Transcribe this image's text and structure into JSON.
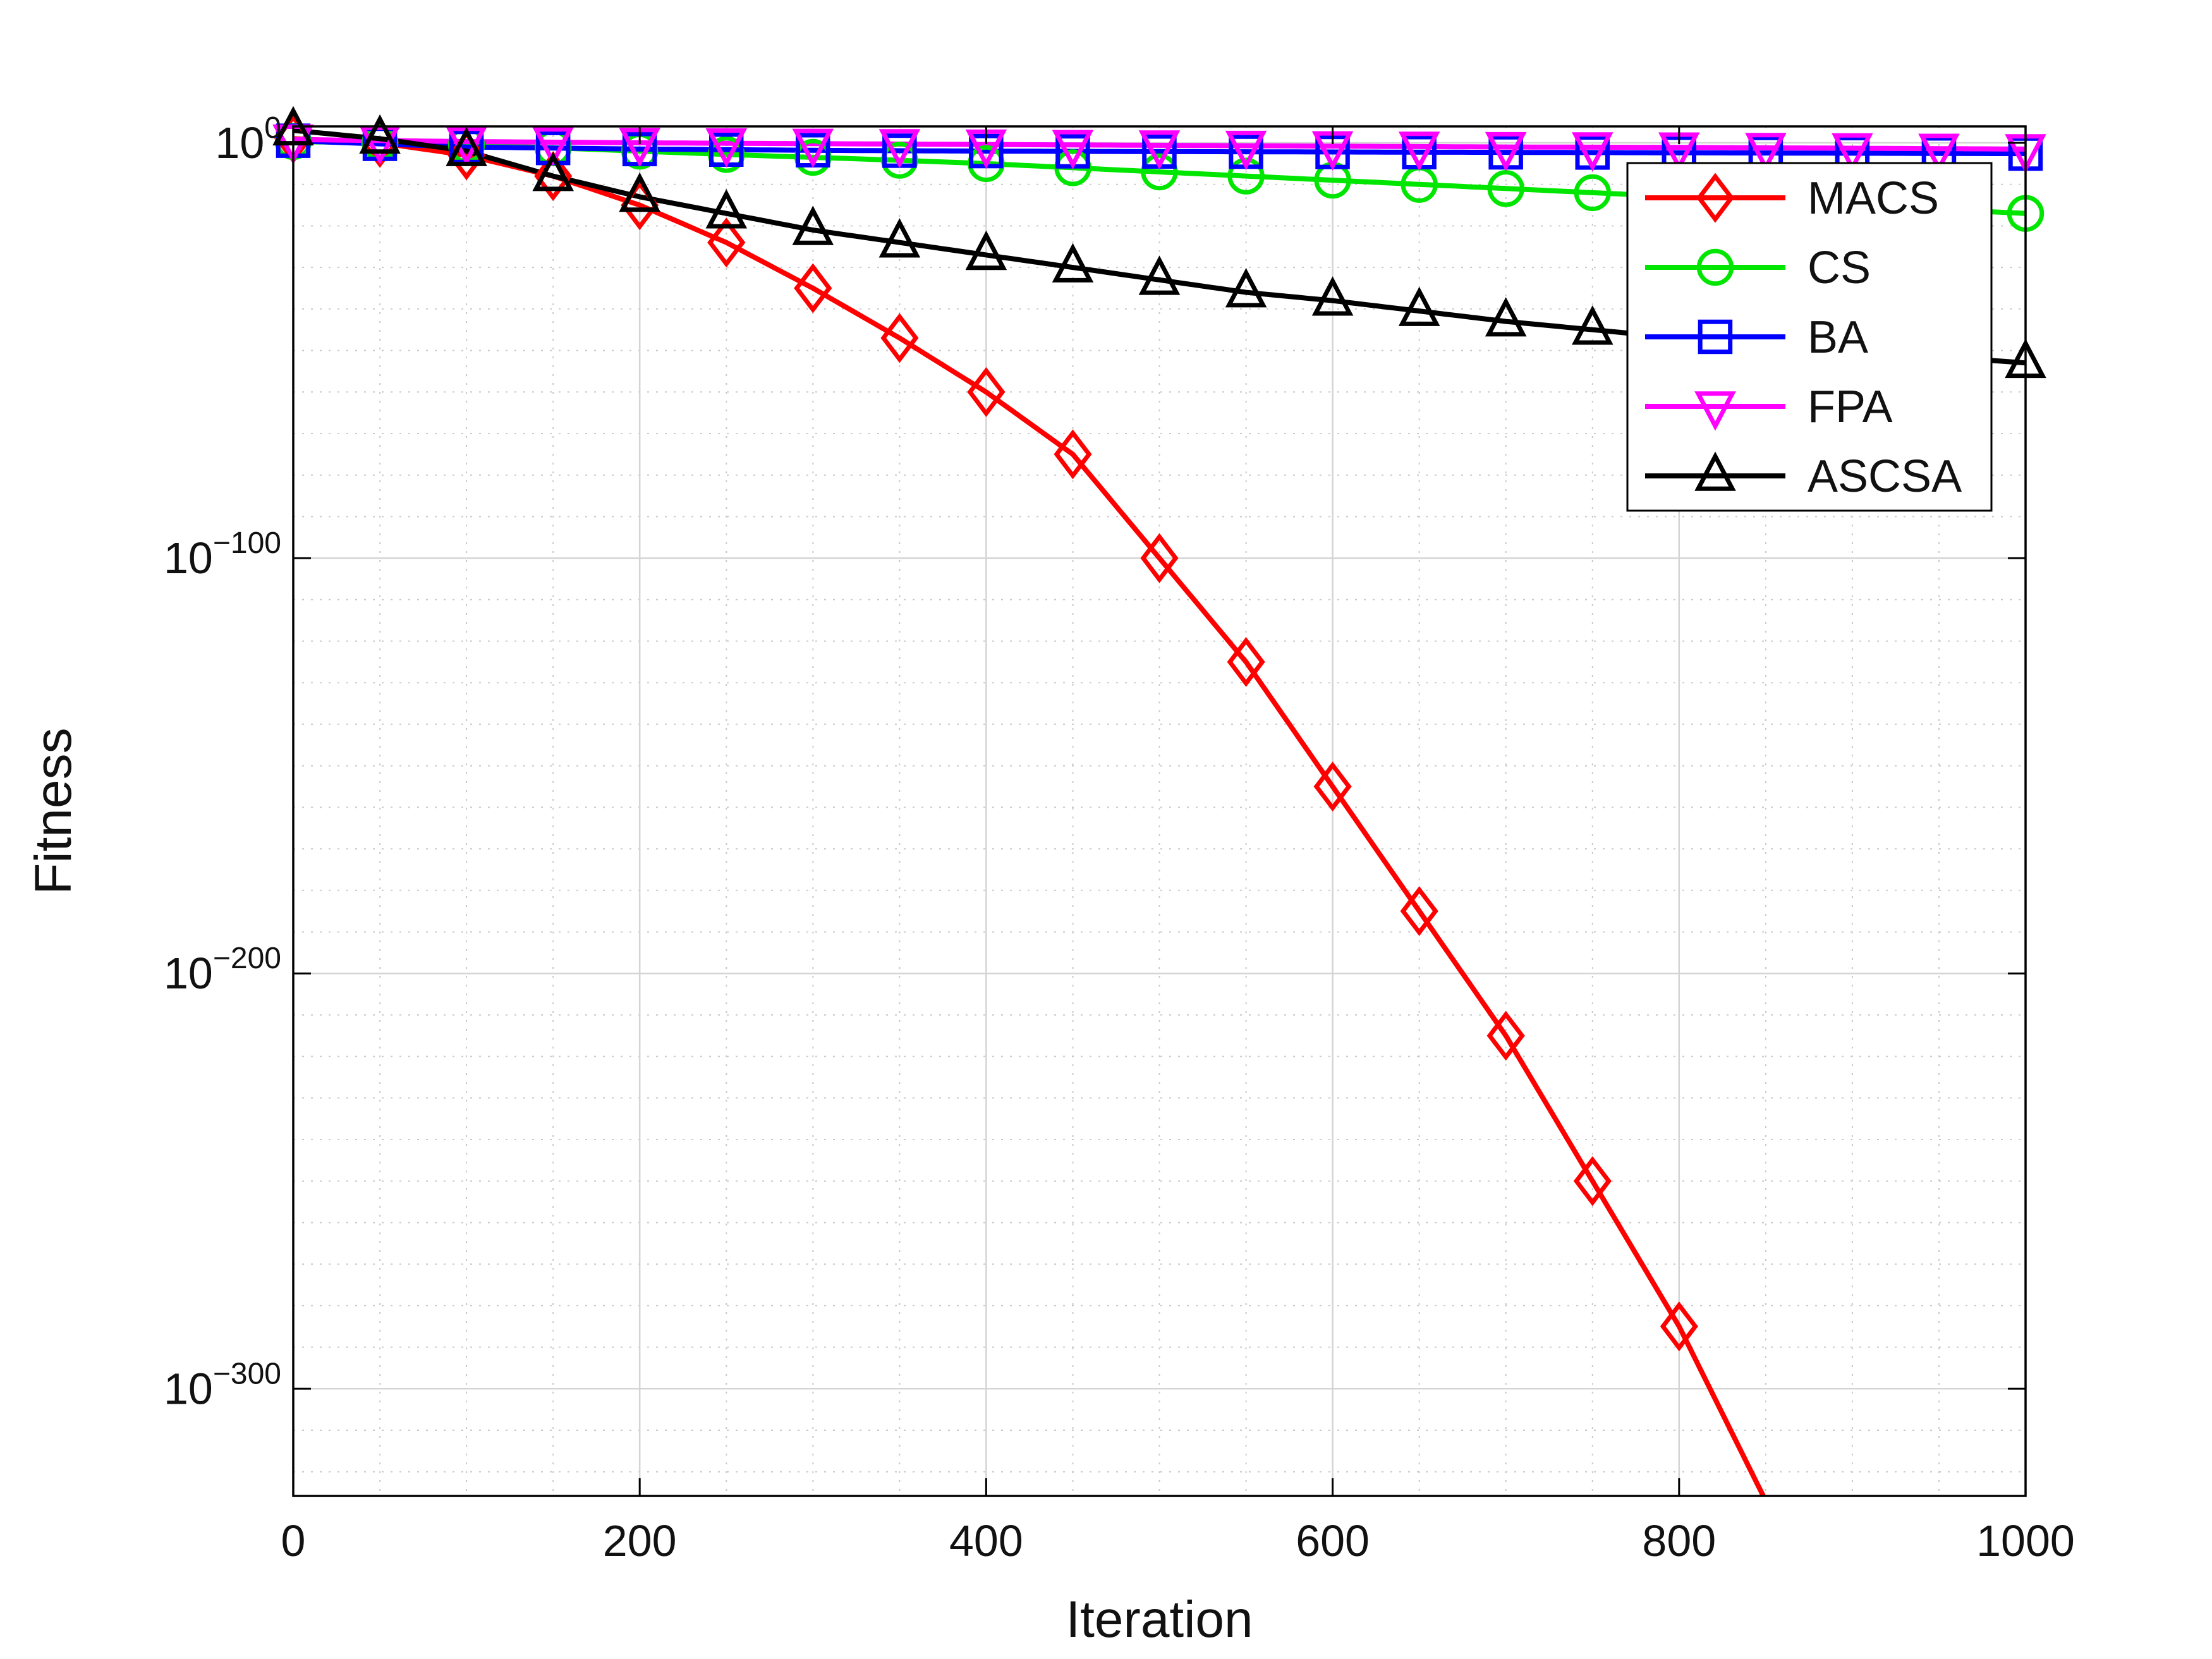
{
  "chart_data": {
    "type": "line",
    "title": "",
    "xlabel": "Iteration",
    "ylabel": "Fitness",
    "x_range": [
      0,
      1000
    ],
    "x_ticks": [
      0,
      200,
      400,
      600,
      800,
      1000
    ],
    "x_minor_step": 50,
    "y_scale": "log10",
    "y_tick_exponents": [
      0,
      -100,
      -200,
      -300
    ],
    "y_tick_labels": [
      "0",
      "−100",
      "−200",
      "−300"
    ],
    "y_exponent_top": 4,
    "y_exponent_bottom": -326,
    "y_minor_step_decades": 10,
    "grid": {
      "major": true,
      "minor": true
    },
    "marker_interval": 50,
    "legend": {
      "position": "northeast",
      "entries": [
        "MACS",
        "CS",
        "BA",
        "FPA",
        "ASCSA"
      ]
    },
    "series": [
      {
        "name": "MACS",
        "color": "#ff0000",
        "marker": "diamond",
        "points": [
          [
            0,
            1
          ],
          [
            50,
            0
          ],
          [
            100,
            -3
          ],
          [
            150,
            -8
          ],
          [
            200,
            -15
          ],
          [
            250,
            -24
          ],
          [
            300,
            -35
          ],
          [
            350,
            -47
          ],
          [
            400,
            -60
          ],
          [
            450,
            -75
          ],
          [
            500,
            -100
          ],
          [
            550,
            -125
          ],
          [
            600,
            -155
          ],
          [
            650,
            -185
          ],
          [
            700,
            -215
          ],
          [
            750,
            -250
          ],
          [
            800,
            -285
          ],
          [
            850,
            -327
          ]
        ]
      },
      {
        "name": "CS",
        "color": "#00e600",
        "marker": "circle",
        "points": [
          [
            0,
            0.3
          ],
          [
            50,
            0
          ],
          [
            100,
            -0.5
          ],
          [
            150,
            -1.2
          ],
          [
            200,
            -2
          ],
          [
            250,
            -2.8
          ],
          [
            300,
            -3.5
          ],
          [
            350,
            -4.2
          ],
          [
            400,
            -5
          ],
          [
            450,
            -6
          ],
          [
            500,
            -7
          ],
          [
            550,
            -8
          ],
          [
            600,
            -9
          ],
          [
            650,
            -10
          ],
          [
            700,
            -11
          ],
          [
            750,
            -12
          ],
          [
            800,
            -13
          ],
          [
            850,
            -14
          ],
          [
            900,
            -15
          ],
          [
            950,
            -16
          ],
          [
            1000,
            -17
          ]
        ]
      },
      {
        "name": "BA",
        "color": "#0000ff",
        "marker": "square",
        "points": [
          [
            0,
            0.5
          ],
          [
            100,
            -1
          ],
          [
            200,
            -1.5
          ],
          [
            300,
            -1.8
          ],
          [
            400,
            -2
          ],
          [
            500,
            -2.1
          ],
          [
            600,
            -2.2
          ],
          [
            700,
            -2.3
          ],
          [
            800,
            -2.4
          ],
          [
            900,
            -2.5
          ],
          [
            1000,
            -2.6
          ]
        ]
      },
      {
        "name": "FPA",
        "color": "#ff00ff",
        "marker": "triangle-down",
        "points": [
          [
            0,
            0.8
          ],
          [
            100,
            0.3
          ],
          [
            200,
            0
          ],
          [
            300,
            -0.2
          ],
          [
            400,
            -0.4
          ],
          [
            500,
            -0.6
          ],
          [
            600,
            -0.8
          ],
          [
            700,
            -1
          ],
          [
            800,
            -1.1
          ],
          [
            900,
            -1.3
          ],
          [
            1000,
            -1.5
          ]
        ]
      },
      {
        "name": "ASCSA",
        "color": "#000000",
        "marker": "triangle-up",
        "points": [
          [
            0,
            3
          ],
          [
            50,
            1
          ],
          [
            100,
            -2
          ],
          [
            150,
            -8
          ],
          [
            200,
            -13
          ],
          [
            250,
            -17
          ],
          [
            300,
            -21
          ],
          [
            350,
            -24
          ],
          [
            400,
            -27
          ],
          [
            450,
            -30
          ],
          [
            500,
            -33
          ],
          [
            550,
            -36
          ],
          [
            600,
            -38
          ],
          [
            650,
            -40.5
          ],
          [
            700,
            -43
          ],
          [
            750,
            -45
          ],
          [
            800,
            -47
          ],
          [
            850,
            -48.5
          ],
          [
            900,
            -50
          ],
          [
            950,
            -51.5
          ],
          [
            1000,
            -53
          ]
        ]
      }
    ]
  }
}
